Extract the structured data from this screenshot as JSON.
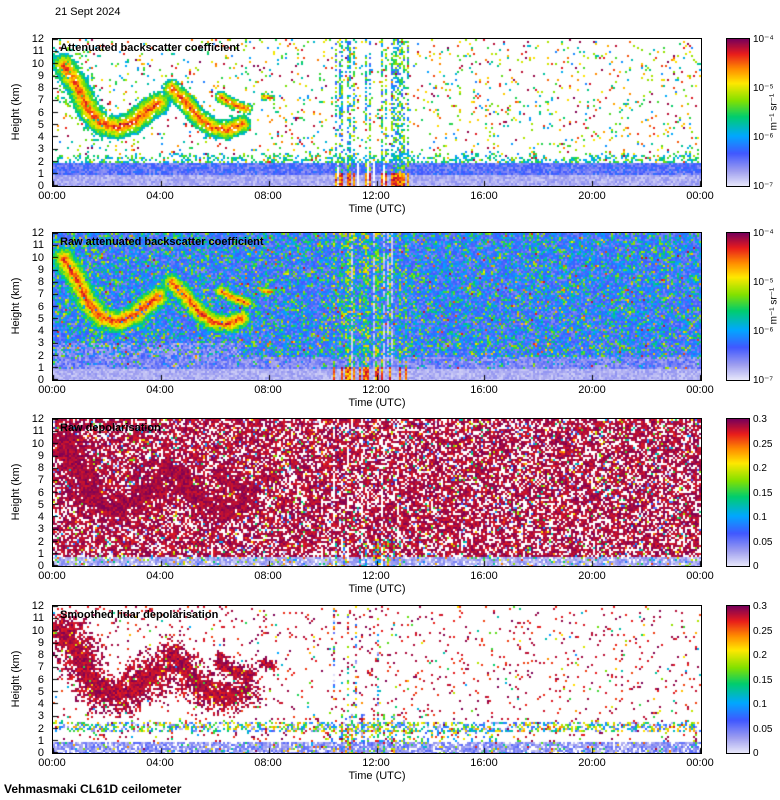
{
  "meta": {
    "date_label": "21 Sept 2024",
    "footer": "Vehmasmaki CL61D ceilometer"
  },
  "axes": {
    "time_label": "Time (UTC)",
    "height_label": "Height (km)",
    "time_ticks": [
      "00:00",
      "04:00",
      "08:00",
      "12:00",
      "16:00",
      "20:00",
      "00:00"
    ],
    "height_ticks": [
      12,
      11,
      10,
      9,
      8,
      7,
      6,
      5,
      4,
      3,
      2,
      1,
      0
    ]
  },
  "colorbars": {
    "backscatter": {
      "ticks": [
        "10⁻⁴",
        "10⁻⁵",
        "10⁻⁶",
        "10⁻⁷"
      ],
      "unit": "m⁻¹ sr⁻¹",
      "scale": "log",
      "min": 1e-07,
      "max": 0.0001
    },
    "depol": {
      "ticks": [
        "0.3",
        "0.25",
        "0.2",
        "0.15",
        "0.1",
        "0.05",
        "0"
      ],
      "scale": "linear",
      "min": 0,
      "max": 0.3
    }
  },
  "chart_data": {
    "type": "heatmap",
    "panels": [
      {
        "title": "Attenuated backscatter coefficient",
        "style": "backscatter",
        "colorbar": "backscatter",
        "x_range_hours": [
          0,
          24
        ],
        "y_range_km": [
          0,
          12
        ]
      },
      {
        "title": "Raw attenuated backscatter coefficient",
        "style": "raw_backscatter",
        "colorbar": "backscatter",
        "x_range_hours": [
          0,
          24
        ],
        "y_range_km": [
          0,
          12
        ]
      },
      {
        "title": "Raw depolarisation",
        "style": "raw_depol",
        "colorbar": "depol",
        "x_range_hours": [
          0,
          24
        ],
        "y_range_km": [
          0,
          12
        ]
      },
      {
        "title": "Smoothed lidar depolarisation",
        "style": "smooth_depol",
        "colorbar": "depol",
        "x_range_hours": [
          0,
          24
        ],
        "y_range_km": [
          0,
          12
        ]
      }
    ],
    "shared": {
      "cloud_plumes": [
        {
          "path": [
            [
              0.4,
              9.9
            ],
            [
              0.9,
              8.2
            ],
            [
              1.3,
              6.3
            ],
            [
              1.8,
              5.1
            ],
            [
              2.4,
              4.8
            ],
            [
              3.0,
              5.3
            ],
            [
              3.5,
              6.2
            ],
            [
              3.9,
              6.8
            ]
          ],
          "halfwidth": 1.0
        },
        {
          "path": [
            [
              4.4,
              8.0
            ],
            [
              4.9,
              6.9
            ],
            [
              5.4,
              5.6
            ],
            [
              5.9,
              4.8
            ],
            [
              6.5,
              4.6
            ],
            [
              7.0,
              5.1
            ]
          ],
          "halfwidth": 0.8
        },
        {
          "path": [
            [
              6.2,
              7.3
            ],
            [
              6.7,
              6.7
            ],
            [
              7.2,
              6.3
            ]
          ],
          "halfwidth": 0.5
        },
        {
          "path": [
            [
              7.8,
              7.3
            ],
            [
              8.1,
              7.2
            ]
          ],
          "halfwidth": 0.3
        }
      ],
      "boundary_layer_top_km": 2.0,
      "depol_layer_km": 2.2,
      "precip_event_hours": [
        10.4,
        13.2
      ]
    }
  }
}
